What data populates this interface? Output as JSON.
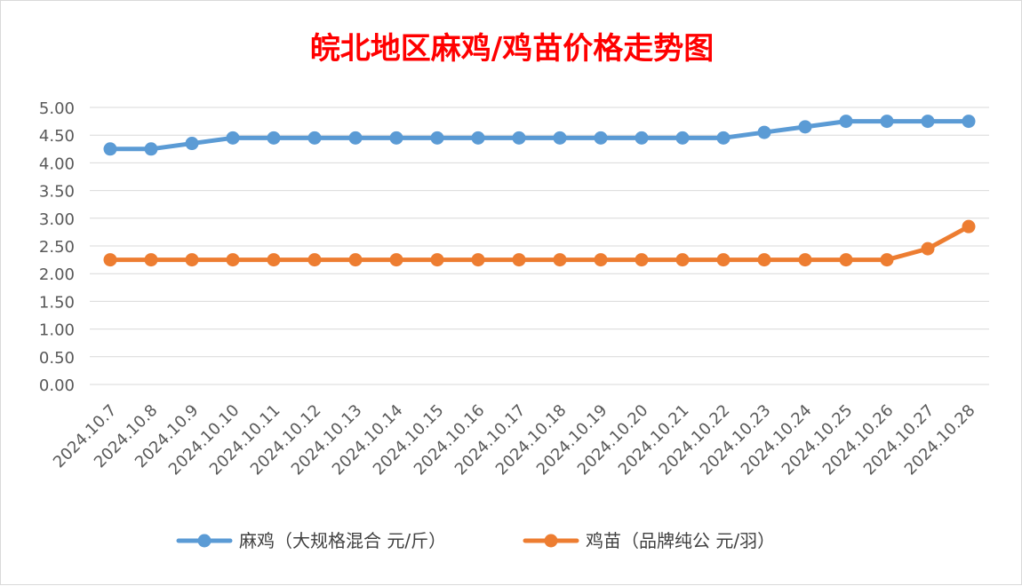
{
  "chart_data": {
    "type": "line",
    "title": "皖北地区麻鸡/鸡苗价格走势图",
    "xlabel": "",
    "ylabel": "",
    "ylim": [
      0,
      5
    ],
    "ytick_step": 0.5,
    "ytick_labels": [
      "0.00",
      "0.50",
      "1.00",
      "1.50",
      "2.00",
      "2.50",
      "3.00",
      "3.50",
      "4.00",
      "4.50",
      "5.00"
    ],
    "grid": true,
    "legend_position": "bottom",
    "categories": [
      "2024.10.7",
      "2024.10.8",
      "2024.10.9",
      "2024.10.10",
      "2024.10.11",
      "2024.10.12",
      "2024.10.13",
      "2024.10.14",
      "2024.10.15",
      "2024.10.16",
      "2024.10.17",
      "2024.10.18",
      "2024.10.19",
      "2024.10.20",
      "2024.10.21",
      "2024.10.22",
      "2024.10.23",
      "2024.10.24",
      "2024.10.25",
      "2024.10.26",
      "2024.10.27",
      "2024.10.28"
    ],
    "series": [
      {
        "name": "麻鸡（大规格混合 元/斤）",
        "color": "#5b9bd5",
        "values": [
          4.25,
          4.25,
          4.35,
          4.45,
          4.45,
          4.45,
          4.45,
          4.45,
          4.45,
          4.45,
          4.45,
          4.45,
          4.45,
          4.45,
          4.45,
          4.45,
          4.55,
          4.65,
          4.75,
          4.75,
          4.75,
          4.75
        ]
      },
      {
        "name": "鸡苗（品牌纯公 元/羽）",
        "color": "#ed7d31",
        "values": [
          2.25,
          2.25,
          2.25,
          2.25,
          2.25,
          2.25,
          2.25,
          2.25,
          2.25,
          2.25,
          2.25,
          2.25,
          2.25,
          2.25,
          2.25,
          2.25,
          2.25,
          2.25,
          2.25,
          2.25,
          2.45,
          2.85
        ]
      }
    ]
  }
}
